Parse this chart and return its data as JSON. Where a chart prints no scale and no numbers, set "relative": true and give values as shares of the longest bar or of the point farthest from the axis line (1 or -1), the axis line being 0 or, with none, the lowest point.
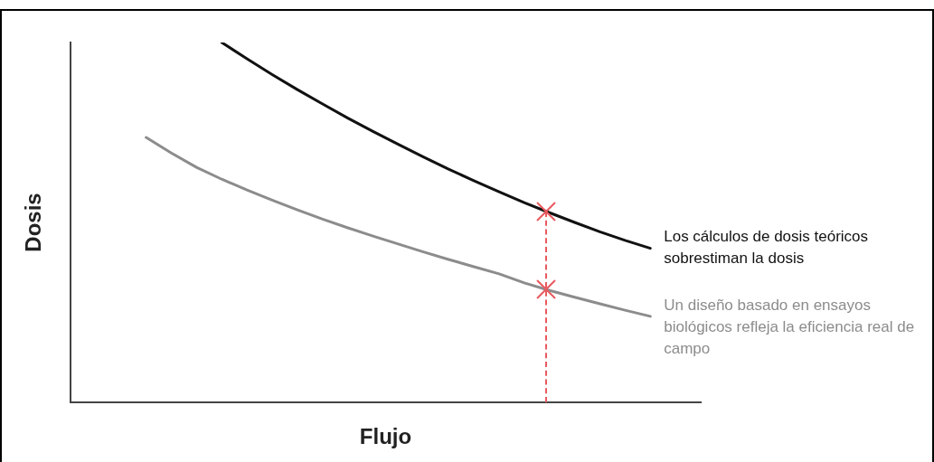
{
  "chart_data": {
    "type": "line",
    "relative": true,
    "xlabel": "Flujo",
    "ylabel": "Dosis",
    "legend": false,
    "categories": [
      null,
      null,
      null,
      null,
      null,
      null,
      null,
      null,
      null,
      null,
      null,
      null,
      null,
      null,
      null,
      null,
      null,
      null,
      null,
      null,
      null,
      null,
      null,
      null,
      null,
      null
    ],
    "series": [
      {
        "name": "Los cálculos de dosis teóricos sobrestiman la dosis",
        "color": "#111111",
        "values": [
          null,
          null,
          null,
          null,
          null,
          null,
          1.0,
          0.955,
          0.911,
          0.869,
          0.829,
          0.79,
          0.753,
          0.717,
          0.682,
          0.648,
          0.616,
          0.585,
          0.555,
          0.527,
          0.5,
          0.474,
          0.45,
          0.428,
          null,
          null
        ]
      },
      {
        "name": "Un diseño basado en ensayos biológicos refleja la eficiencia real de campo",
        "color": "#8c8c8c",
        "values": [
          null,
          null,
          null,
          0.736,
          0.693,
          0.653,
          0.62,
          0.59,
          0.562,
          0.535,
          0.509,
          0.485,
          0.462,
          0.44,
          0.418,
          0.397,
          0.377,
          0.357,
          0.332,
          0.311,
          0.292,
          0.274,
          0.256,
          0.239,
          null,
          null
        ]
      }
    ]
  }
}
